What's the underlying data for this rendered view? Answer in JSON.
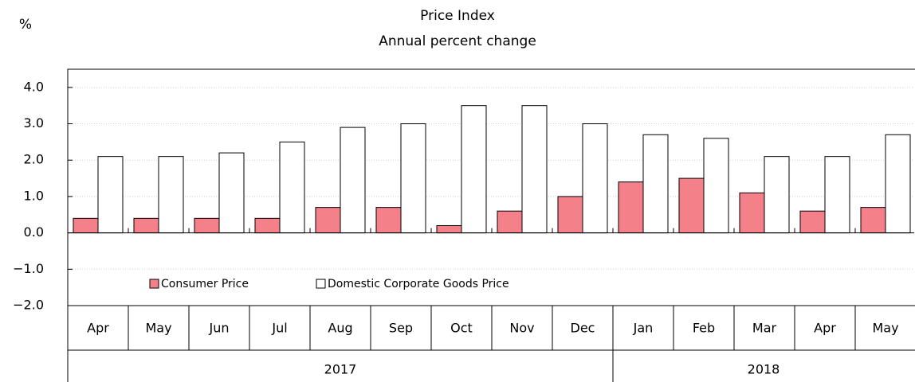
{
  "chart_data": {
    "type": "bar",
    "unit": "%",
    "title": "Price Index",
    "subtitle": "Annual percent change",
    "categories": [
      "Apr",
      "May",
      "Jun",
      "Jul",
      "Aug",
      "Sep",
      "Oct",
      "Nov",
      "Dec",
      "Jan",
      "Feb",
      "Mar",
      "Apr",
      "May"
    ],
    "groups": [
      {
        "label": "2017",
        "count": 9
      },
      {
        "label": "2018",
        "count": 5
      }
    ],
    "series": [
      {
        "name": "Consumer Price",
        "color": "#f4818a",
        "values": [
          0.4,
          0.4,
          0.4,
          0.4,
          0.7,
          0.7,
          0.2,
          0.6,
          1.0,
          1.4,
          1.5,
          1.1,
          0.6,
          0.7
        ]
      },
      {
        "name": "Domestic Corporate Goods Price",
        "color": "#ffffff",
        "values": [
          2.1,
          2.1,
          2.2,
          2.5,
          2.9,
          3.0,
          3.5,
          3.5,
          3.0,
          2.7,
          2.6,
          2.1,
          2.1,
          2.7
        ]
      }
    ],
    "ylim": [
      -2,
      4.5
    ],
    "yticks": [
      {
        "value": -2,
        "label": "−2.0"
      },
      {
        "value": -1,
        "label": "−1.0"
      },
      {
        "value": 0,
        "label": "0.0"
      },
      {
        "value": 1,
        "label": "1.0"
      },
      {
        "value": 2,
        "label": "2.0"
      },
      {
        "value": 3,
        "label": "3.0"
      },
      {
        "value": 4,
        "label": "4.0"
      }
    ],
    "grid": true
  }
}
